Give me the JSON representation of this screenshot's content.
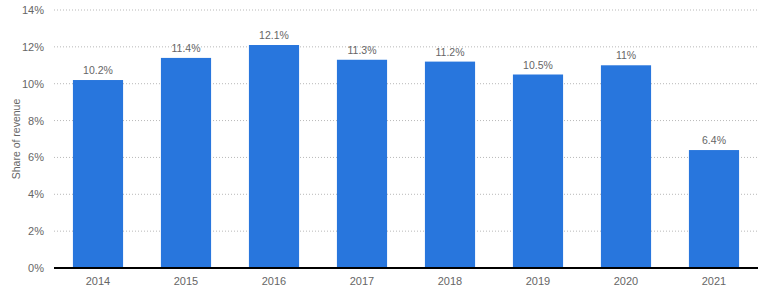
{
  "chart_data": {
    "type": "bar",
    "y_label": "Share of revenue",
    "categories": [
      "2014",
      "2015",
      "2016",
      "2017",
      "2018",
      "2019",
      "2020",
      "2021"
    ],
    "values": [
      10.2,
      11.4,
      12.1,
      11.3,
      11.2,
      10.5,
      11,
      6.4
    ],
    "value_labels": [
      "10.2%",
      "11.4%",
      "12.1%",
      "11.3%",
      "11.2%",
      "10.5%",
      "11%",
      "6.4%"
    ],
    "color": "#2876dd",
    "ylim": [
      0,
      14
    ],
    "yticks": [
      {
        "value": 0,
        "label": "0%"
      },
      {
        "value": 2,
        "label": "2%"
      },
      {
        "value": 4,
        "label": "4%"
      },
      {
        "value": 6,
        "label": "6%"
      },
      {
        "value": 8,
        "label": "8%"
      },
      {
        "value": 10,
        "label": "10%"
      },
      {
        "value": 12,
        "label": "12%"
      },
      {
        "value": 14,
        "label": "14%"
      }
    ],
    "grid": true,
    "data_labels": true
  }
}
